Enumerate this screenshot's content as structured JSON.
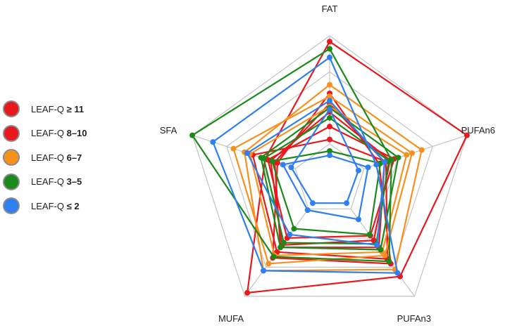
{
  "chart_data": {
    "type": "radar",
    "axes": [
      "FAT",
      "PUFAn6",
      "PUFAn3",
      "MUFA",
      "SFA"
    ],
    "range": [
      0,
      1
    ],
    "grid_levels": 4,
    "legend_position": "left",
    "legend": [
      {
        "prefix": "LEAF-Q",
        "suffix": "≥ 11",
        "color": "#e8191e"
      },
      {
        "prefix": "LEAF-Q",
        "suffix": "8–10",
        "color": "#e8191e"
      },
      {
        "prefix": "LEAF-Q",
        "suffix": "6–7",
        "color": "#f7901e"
      },
      {
        "prefix": "LEAF-Q",
        "suffix": "3–5",
        "color": "#1a8a1a"
      },
      {
        "prefix": "LEAF-Q",
        "suffix": "≤ 2",
        "color": "#2e7ff0"
      }
    ],
    "series": [
      {
        "group": "LEAF-Q ≥ 11",
        "color": "#e8191e",
        "values": [
          0.96,
          1.0,
          0.83,
          0.97,
          0.47
        ]
      },
      {
        "group": "LEAF-Q 8–10",
        "color": "#e8191e",
        "values": [
          0.6,
          0.36,
          0.72,
          0.67,
          0.38
        ]
      },
      {
        "group": "LEAF-Q 8–10",
        "color": "#e8191e",
        "values": [
          0.53,
          0.4,
          0.58,
          0.58,
          0.4
        ]
      },
      {
        "group": "LEAF-Q 8–10",
        "color": "#e8191e",
        "values": [
          0.47,
          0.44,
          0.52,
          0.56,
          0.43
        ]
      },
      {
        "group": "LEAF-Q 8–10",
        "color": "#e8191e",
        "values": [
          0.37,
          0.47,
          0.48,
          0.5,
          0.45
        ]
      },
      {
        "group": "LEAF-Q 8–10",
        "color": "#e8191e",
        "values": [
          0.28,
          0.41,
          0.68,
          0.62,
          0.56
        ]
      },
      {
        "group": "LEAF-Q 6–7",
        "color": "#f7901e",
        "values": [
          0.66,
          0.67,
          0.77,
          0.78,
          0.62
        ]
      },
      {
        "group": "LEAF-Q 6–7",
        "color": "#f7901e",
        "values": [
          0.58,
          0.6,
          0.65,
          0.72,
          0.7
        ]
      },
      {
        "group": "LEAF-Q 6–7",
        "color": "#f7901e",
        "values": [
          0.51,
          0.56,
          0.62,
          0.65,
          0.58
        ]
      },
      {
        "group": "LEAF-Q 3–5",
        "color": "#1a8a1a",
        "values": [
          0.91,
          0.45,
          0.7,
          0.66,
          1.0
        ]
      },
      {
        "group": "LEAF-Q 3–5",
        "color": "#1a8a1a",
        "values": [
          0.5,
          0.5,
          0.6,
          0.58,
          0.5
        ]
      },
      {
        "group": "LEAF-Q 3–5",
        "color": "#1a8a1a",
        "values": [
          0.43,
          0.43,
          0.55,
          0.54,
          0.48
        ]
      },
      {
        "group": "LEAF-Q 3–5",
        "color": "#1a8a1a",
        "values": [
          0.2,
          0.37,
          0.47,
          0.42,
          0.42
        ]
      },
      {
        "group": "LEAF-Q ≤ 2",
        "color": "#2e7ff0",
        "values": [
          0.85,
          0.34,
          0.8,
          0.78,
          0.85
        ]
      },
      {
        "group": "LEAF-Q ≤ 2",
        "color": "#2e7ff0",
        "values": [
          0.55,
          0.4,
          0.56,
          0.47,
          0.6
        ]
      },
      {
        "group": "LEAF-Q ≤ 2",
        "color": "#2e7ff0",
        "values": [
          0.17,
          0.28,
          0.34,
          0.26,
          0.34
        ]
      },
      {
        "group": "LEAF-Q ≤ 2",
        "color": "#2e7ff0",
        "values": [
          0.49,
          0.21,
          0.2,
          0.2,
          0.28
        ]
      }
    ]
  }
}
